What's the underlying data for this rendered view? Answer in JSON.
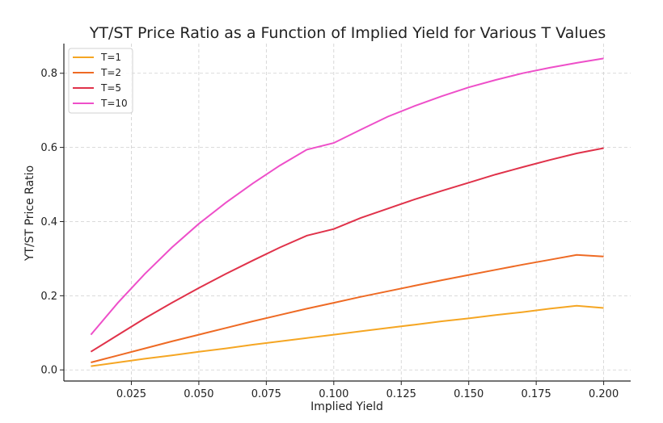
{
  "chart_data": {
    "type": "line",
    "title": "YT/ST Price Ratio as a Function of Implied Yield for Various T Values",
    "xlabel": "Implied Yield",
    "ylabel": "YT/ST Price Ratio",
    "xlim": [
      0.0,
      0.21
    ],
    "ylim": [
      -0.03,
      0.88
    ],
    "xticks": [
      0.025,
      0.05,
      0.075,
      0.1,
      0.125,
      0.15,
      0.175,
      0.2
    ],
    "xtick_labels": [
      "0.025",
      "0.050",
      "0.075",
      "0.100",
      "0.125",
      "0.150",
      "0.175",
      "0.200"
    ],
    "yticks": [
      0.0,
      0.2,
      0.4,
      0.6,
      0.8
    ],
    "ytick_labels": [
      "0.0",
      "0.2",
      "0.4",
      "0.6",
      "0.8"
    ],
    "grid": true,
    "legend_position": "top-left",
    "x": [
      0.01,
      0.02,
      0.03,
      0.04,
      0.05,
      0.06,
      0.07,
      0.08,
      0.09,
      0.1,
      0.11,
      0.12,
      0.13,
      0.14,
      0.15,
      0.16,
      0.17,
      0.18,
      0.19,
      0.2
    ],
    "series": [
      {
        "name": "T=1",
        "color": "#f5a623",
        "values": [
          0.01,
          0.02,
          0.03,
          0.039,
          0.049,
          0.058,
          0.068,
          0.077,
          0.086,
          0.095,
          0.104,
          0.113,
          0.122,
          0.131,
          0.139,
          0.148,
          0.156,
          0.165,
          0.173,
          0.167
        ]
      },
      {
        "name": "T=2",
        "color": "#ee6a24",
        "values": [
          0.02,
          0.039,
          0.058,
          0.077,
          0.095,
          0.113,
          0.131,
          0.148,
          0.165,
          0.181,
          0.197,
          0.212,
          0.227,
          0.242,
          0.256,
          0.27,
          0.284,
          0.297,
          0.31,
          0.306
        ]
      },
      {
        "name": "T=5",
        "color": "#e0324a",
        "values": [
          0.049,
          0.094,
          0.139,
          0.181,
          0.221,
          0.259,
          0.295,
          0.33,
          0.362,
          0.38,
          0.41,
          0.435,
          0.46,
          0.483,
          0.505,
          0.527,
          0.547,
          0.566,
          0.584,
          0.598
        ]
      },
      {
        "name": "T=10",
        "color": "#ee4fc9",
        "values": [
          0.095,
          0.181,
          0.259,
          0.33,
          0.394,
          0.451,
          0.503,
          0.551,
          0.594,
          0.612,
          0.648,
          0.683,
          0.712,
          0.738,
          0.762,
          0.782,
          0.8,
          0.815,
          0.828,
          0.84
        ]
      }
    ]
  }
}
